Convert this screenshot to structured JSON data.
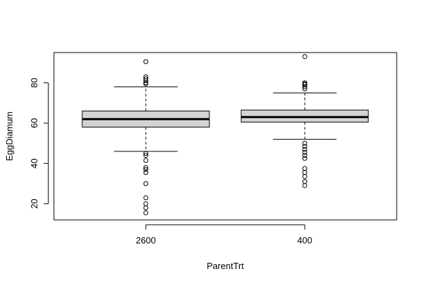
{
  "chart_data": {
    "type": "boxplot",
    "title": "",
    "xlabel": "ParentTrt",
    "ylabel": "EggDiamum",
    "ylim": [
      12,
      95
    ],
    "yticks": [
      20,
      40,
      60,
      80
    ],
    "ytick_labels": [
      "20",
      "40",
      "60",
      "80"
    ],
    "categories": [
      "2600",
      "400"
    ],
    "box_color": "#d3d3d3",
    "boxes": [
      {
        "category": "2600",
        "whisker_low": 46,
        "q1": 58,
        "median": 62,
        "q3": 66,
        "whisker_high": 78,
        "outliers": [
          90.5,
          83,
          82,
          81,
          80,
          79.5,
          45,
          44,
          41.5,
          38,
          37,
          35.5,
          30,
          23,
          20,
          18,
          15.5
        ]
      },
      {
        "category": "400",
        "whisker_low": 52,
        "q1": 60.5,
        "median": 63,
        "q3": 66.5,
        "whisker_high": 75,
        "outliers": [
          93,
          80,
          79.5,
          79,
          78,
          77,
          50,
          48.5,
          47,
          45.5,
          44,
          42.5,
          37.5,
          35.5,
          33.5,
          31,
          29
        ]
      }
    ]
  }
}
